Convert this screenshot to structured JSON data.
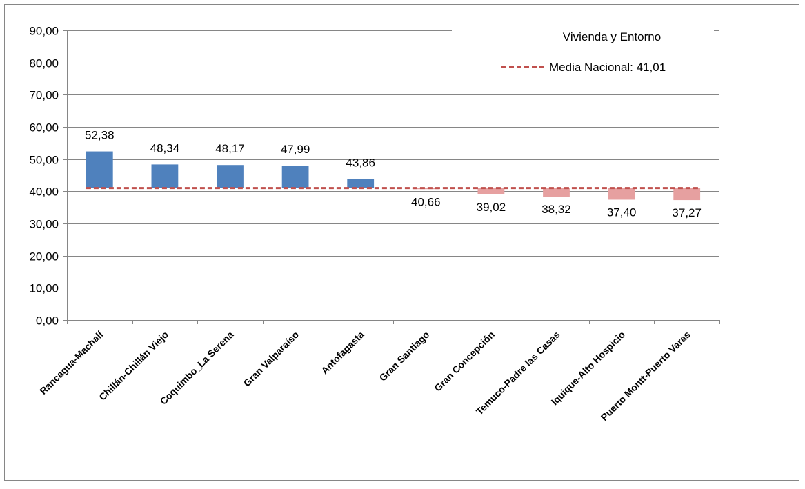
{
  "chart_data": {
    "type": "bar",
    "legend": {
      "title": "Vivienda y Entorno",
      "entries": [
        {
          "label": "Media Nacional: 41,01",
          "style": "dashed-line",
          "color": "#C0504D"
        }
      ],
      "placement": "top-right"
    },
    "baseline": 41.01,
    "categories": [
      "Rancagua-Machalí",
      "Chillán-Chillán Viejo",
      "Coquimbo_La Serena",
      "Gran Valparaíso",
      "Antofagasta",
      "Gran Santiago",
      "Gran Concepción",
      "Temuco-Padre las Casas",
      "Iquique-Alto Hospicio",
      "Puerto Montt-Puerto Varas"
    ],
    "values": [
      52.38,
      48.34,
      48.17,
      47.99,
      43.86,
      40.66,
      39.02,
      38.32,
      37.4,
      37.27
    ],
    "data_labels": [
      "52,38",
      "48,34",
      "48,17",
      "47,99",
      "43,86",
      "40,66",
      "39,02",
      "38,32",
      "37,40",
      "37,27"
    ],
    "ylim": [
      0,
      90
    ],
    "yticks": [
      "0,00",
      "10,00",
      "20,00",
      "30,00",
      "40,00",
      "50,00",
      "60,00",
      "70,00",
      "80,00",
      "90,00"
    ],
    "grid": true,
    "colors": {
      "above": "#4F81BD",
      "below": "#E6A0A0",
      "baseline": "#C0504D",
      "grid": "#868686"
    }
  }
}
